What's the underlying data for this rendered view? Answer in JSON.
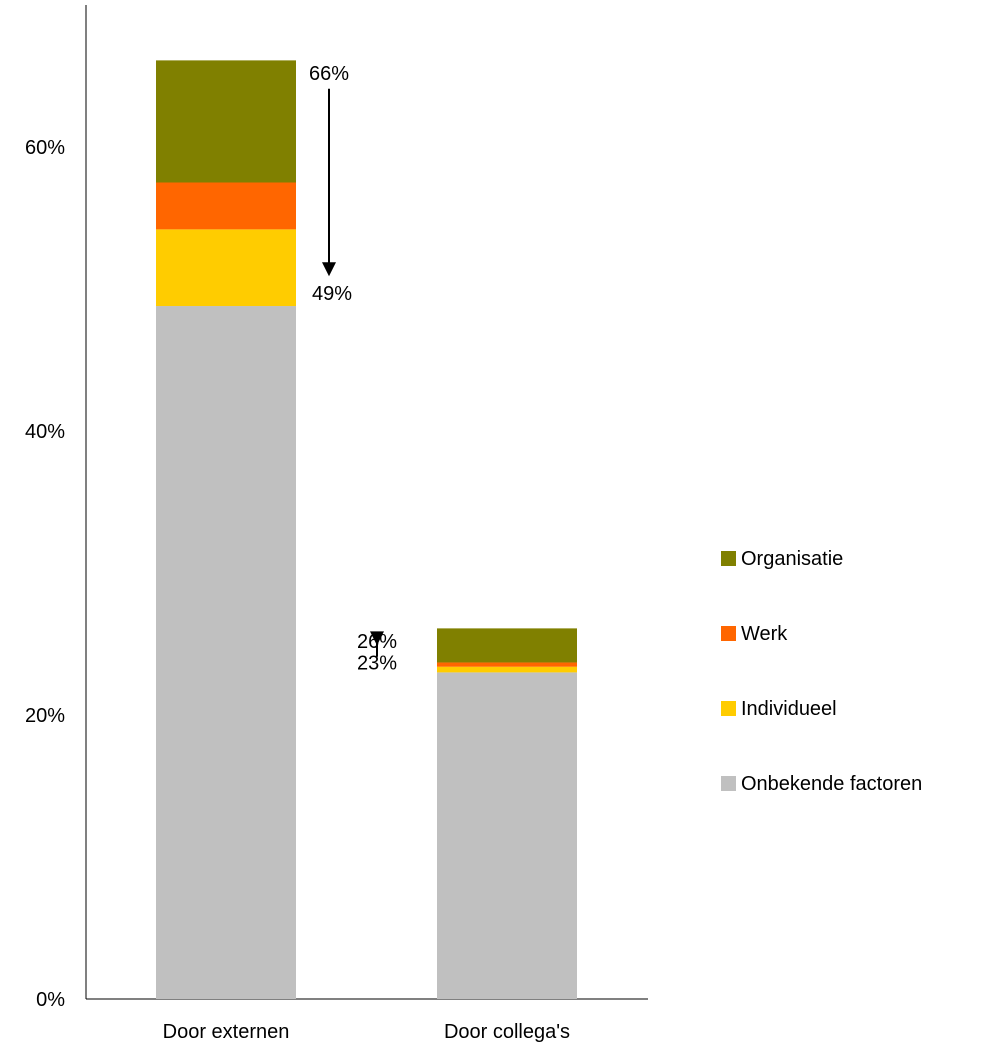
{
  "chart_data": {
    "type": "bar",
    "stacked": true,
    "title": "",
    "xlabel": "",
    "ylabel": "",
    "categories": [
      "Door externen",
      "Door collega's"
    ],
    "series": [
      {
        "name": "Onbekende factoren",
        "color": "#c0c0c0",
        "values": [
          48.8,
          23.0
        ]
      },
      {
        "name": "Individueel",
        "color": "#ffcc00",
        "values": [
          5.4,
          0.4
        ]
      },
      {
        "name": "Werk",
        "color": "#ff6600",
        "values": [
          3.3,
          0.3
        ]
      },
      {
        "name": "Organisatie",
        "color": "#808000",
        "values": [
          8.6,
          2.4
        ]
      }
    ],
    "ylim": [
      0,
      70
    ],
    "yticks": [
      {
        "value": 0,
        "label": "0%"
      },
      {
        "value": 20,
        "label": "20%"
      },
      {
        "value": 40,
        "label": "40%"
      },
      {
        "value": 60,
        "label": "60%"
      }
    ],
    "annotations": [
      {
        "category_index": 0,
        "from": 66,
        "to": 49,
        "from_label": "66%",
        "to_label": "49%",
        "side": "right"
      },
      {
        "category_index": 1,
        "from": 26,
        "to": 23,
        "from_label": "26%",
        "to_label": "23%",
        "side": "left"
      }
    ],
    "legend": {
      "placement": "right",
      "order": [
        "Organisatie",
        "Werk",
        "Individueel",
        "Onbekende factoren"
      ]
    },
    "grid": false
  }
}
